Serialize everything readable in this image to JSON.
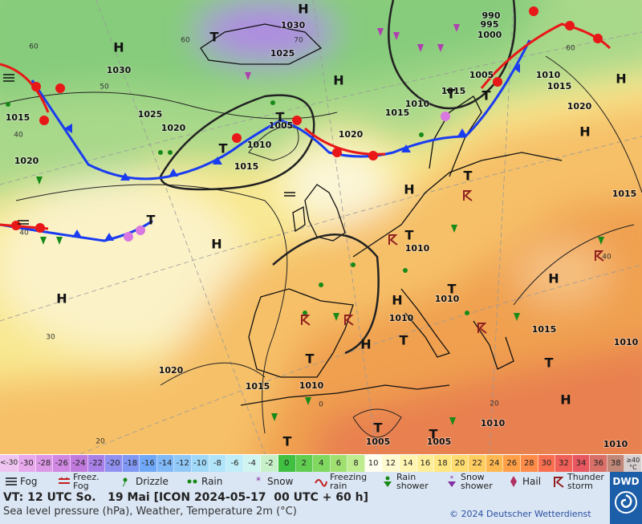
{
  "map": {
    "pressure_labels": [
      1030,
      1025,
      1030,
      1025,
      1020,
      1015,
      1020,
      1010,
      1005,
      1015,
      1020,
      1015,
      1010,
      1015,
      1005,
      990,
      995,
      1000,
      1010,
      1015,
      1020,
      1015,
      1010,
      1010,
      1010,
      1015,
      1010,
      1020,
      1015,
      1010,
      1010,
      1005,
      1005,
      1010
    ],
    "temperature_labels": [
      60,
      50,
      40,
      30,
      20,
      60,
      70,
      60,
      40,
      40,
      20,
      0
    ],
    "highs": [
      "H",
      "H",
      "H",
      "H",
      "H",
      "H",
      "H",
      "H",
      "H",
      "H",
      "H",
      "H"
    ],
    "lows": [
      "T",
      "T",
      "T",
      "T",
      "T",
      "T",
      "T",
      "T",
      "T",
      "T",
      "T",
      "T",
      "T",
      "T",
      "T"
    ]
  },
  "scale": {
    "low": {
      "label": "<-30",
      "color": "#f0c4f0"
    },
    "values": [
      -30,
      -28,
      -26,
      -24,
      -22,
      -20,
      -18,
      -16,
      -14,
      -12,
      -10,
      -8,
      -6,
      -4,
      -2,
      0,
      2,
      4,
      6,
      8,
      10,
      12,
      14,
      16,
      18,
      20,
      22,
      24,
      26,
      28,
      30,
      32,
      34,
      36,
      38
    ],
    "colors": [
      "#e8a8ec",
      "#dc98e6",
      "#d088e2",
      "#c07ade",
      "#a880e8",
      "#9090f0",
      "#8098f4",
      "#70a8f8",
      "#80b8f8",
      "#90c8f8",
      "#a0d8f8",
      "#b0e4f8",
      "#c0eef8",
      "#d0f4f0",
      "#c8f0c8",
      "#40c040",
      "#60cc50",
      "#80d860",
      "#a0e070",
      "#c0ec90",
      "#fffff0",
      "#fffbd0",
      "#fff5b0",
      "#ffee98",
      "#ffe680",
      "#ffdc70",
      "#ffcc60",
      "#ffb850",
      "#ffa048",
      "#ff8c48",
      "#f87050",
      "#f06058",
      "#e85860",
      "#d87068",
      "#c08878"
    ],
    "high": {
      "label": "≥40 °C",
      "color": "#d8d0d0"
    }
  },
  "legend": [
    "Fog",
    "Freez. Fog",
    "Drizzle",
    "Rain",
    "Snow",
    "Freezing rain",
    "Rain shower",
    "Snow shower",
    "Hail",
    "Thunder storm"
  ],
  "footer": {
    "valid_time": "VT: 12 UTC So.   19 Mai [ICON 2024-05-17  00 UTC + 60 h]",
    "description": "Sea level pressure (hPa), Weather, Temperature 2m (°C)",
    "copyright": "© 2024 Deutscher Wetterdienst",
    "logo": "DWD"
  }
}
